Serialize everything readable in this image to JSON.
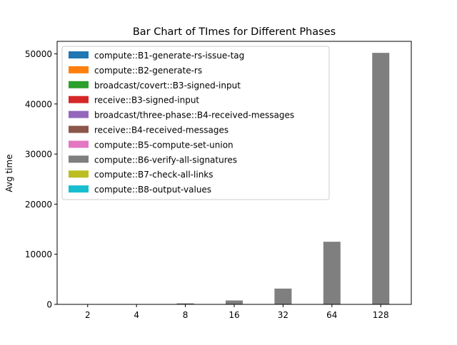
{
  "chart_data": {
    "type": "bar",
    "title": "Bar Chart of TImes for Different Phases",
    "xlabel": "",
    "ylabel": "Avg time",
    "categories": [
      "2",
      "4",
      "8",
      "16",
      "32",
      "64",
      "128"
    ],
    "ylim": [
      0,
      52500
    ],
    "yticks": [
      0,
      10000,
      20000,
      30000,
      40000,
      50000
    ],
    "grid": false,
    "legend_position": "upper-left",
    "series": [
      {
        "name": "compute::B1-generate-rs-issue-tag",
        "color": "#1f77b4",
        "values": [
          0,
          0,
          0,
          0,
          0,
          0,
          0
        ]
      },
      {
        "name": "compute::B2-generate-rs",
        "color": "#ff7f0e",
        "values": [
          0,
          0,
          0,
          0,
          0,
          0,
          0
        ]
      },
      {
        "name": "broadcast/covert::B3-signed-input",
        "color": "#2ca02c",
        "values": [
          0,
          0,
          0,
          0,
          0,
          0,
          0
        ]
      },
      {
        "name": "receive::B3-signed-input",
        "color": "#d62728",
        "values": [
          0,
          0,
          0,
          0,
          0,
          0,
          0
        ]
      },
      {
        "name": "broadcast/three-phase::B4-received-messages",
        "color": "#9467bd",
        "values": [
          0,
          0,
          0,
          0,
          0,
          0,
          0
        ]
      },
      {
        "name": "receive::B4-received-messages",
        "color": "#8c564b",
        "values": [
          0,
          0,
          0,
          0,
          0,
          0,
          0
        ]
      },
      {
        "name": "compute::B5-compute-set-union",
        "color": "#e377c2",
        "values": [
          0,
          0,
          0,
          0,
          0,
          0,
          0
        ]
      },
      {
        "name": "compute::B6-verify-all-signatures",
        "color": "#7f7f7f",
        "values": [
          12,
          50,
          200,
          780,
          3150,
          12500,
          50200
        ]
      },
      {
        "name": "compute::B7-check-all-links",
        "color": "#bcbd22",
        "values": [
          0,
          0,
          0,
          0,
          0,
          0,
          0
        ]
      },
      {
        "name": "compute::B8-output-values",
        "color": "#17becf",
        "values": [
          0,
          0,
          0,
          0,
          0,
          0,
          0
        ]
      }
    ]
  }
}
